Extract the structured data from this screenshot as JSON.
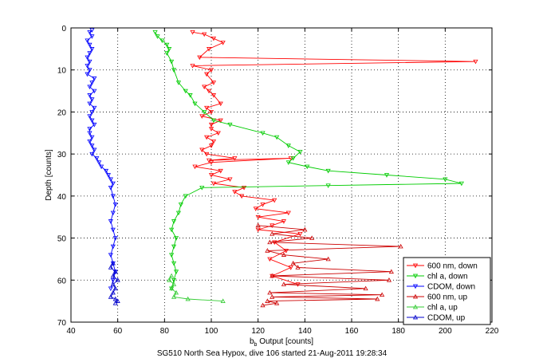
{
  "chart_data": {
    "type": "line",
    "title": "",
    "caption": "SG510 North Sea Hypox, dive 106 started 21-Aug-2011 19:28:34",
    "xlabel_main": "b",
    "xlabel_sub": "b",
    "xlabel_rest": " Output [counts]",
    "ylabel": "Depth [counts]",
    "xlim": [
      40,
      220
    ],
    "ylim": [
      0,
      70
    ],
    "y_reversed": true,
    "grid": true,
    "xticks": [
      40,
      60,
      80,
      100,
      120,
      140,
      160,
      180,
      200,
      220
    ],
    "yticks": [
      0,
      10,
      20,
      30,
      40,
      50,
      60,
      70
    ],
    "legend_position": "bottom-right",
    "series": [
      {
        "name": "600 nm, down",
        "color": "#ff0000",
        "marker": "tri-down",
        "x": [
          92,
          97,
          101,
          105,
          99,
          95,
          213,
          92,
          100,
          98,
          101,
          97,
          99,
          101,
          104,
          98,
          100,
          96,
          104,
          100,
          100,
          103,
          98,
          101,
          100,
          96,
          98,
          110,
          99,
          134,
          100,
          93,
          104,
          100,
          108,
          101,
          114,
          110,
          113,
          127,
          122,
          119,
          133,
          120,
          131,
          126,
          120,
          138,
          127,
          132,
          125,
          134,
          126,
          137
        ],
        "y": [
          1,
          1.5,
          2.5,
          3.5,
          5,
          7,
          8,
          9,
          10,
          11,
          13,
          14,
          15,
          16,
          18,
          19,
          20,
          21,
          22,
          23,
          24,
          25,
          26,
          27,
          28,
          29,
          30,
          31,
          31.5,
          31,
          32,
          33,
          34,
          35,
          36,
          37,
          38,
          39,
          40,
          41,
          42,
          43,
          44,
          45,
          46,
          47,
          48,
          49,
          51,
          53,
          55,
          57,
          59,
          61
        ]
      },
      {
        "name": "chl a, down",
        "color": "#00cc00",
        "marker": "tri-down",
        "x": [
          76,
          77,
          79,
          81,
          82,
          81,
          83,
          84,
          86,
          89,
          91,
          93,
          97,
          101,
          108,
          122,
          128,
          133,
          138,
          135,
          133,
          141,
          150,
          175,
          200,
          207,
          150,
          96,
          89,
          87,
          86,
          84,
          83,
          85,
          84,
          83,
          84,
          85,
          84,
          83
        ],
        "y": [
          1,
          2,
          3,
          4,
          5,
          6,
          8,
          10,
          13,
          15,
          16,
          18,
          20,
          22,
          23,
          25,
          26,
          28,
          29.5,
          31,
          32,
          33,
          34,
          35,
          36,
          37,
          37.5,
          38,
          40,
          42,
          44,
          46,
          48,
          50,
          52,
          54,
          56,
          58,
          60,
          62
        ]
      },
      {
        "name": "CDOM, down",
        "color": "#0000ff",
        "marker": "tri-down",
        "x": [
          49,
          48,
          49,
          47,
          48,
          49,
          48,
          47,
          48,
          47,
          48,
          47,
          50,
          49,
          48,
          50,
          48,
          49,
          48,
          50,
          49,
          48,
          49,
          50,
          48,
          48,
          49,
          48,
          49,
          50,
          49,
          51,
          52,
          53,
          55,
          56,
          57,
          58,
          57,
          58,
          59,
          58,
          57,
          58,
          59,
          58,
          57,
          58,
          59,
          58,
          57
        ],
        "y": [
          0.5,
          1,
          2,
          3,
          4,
          5,
          6,
          7,
          8,
          9,
          10,
          11,
          12,
          13,
          14,
          15,
          16,
          17,
          18,
          19,
          20,
          21,
          22,
          23,
          24,
          25,
          26,
          27,
          28,
          29,
          30,
          31,
          32,
          33,
          34,
          35,
          36,
          37,
          38,
          40,
          42,
          44,
          46,
          48,
          50,
          52,
          54,
          56,
          58,
          60,
          62
        ]
      },
      {
        "name": "600 nm, up",
        "color": "#cc0000",
        "marker": "tri-up",
        "x": [
          120,
          140,
          126,
          143,
          125,
          181,
          124,
          131,
          150,
          135,
          137,
          177,
          126,
          176,
          131,
          166,
          125,
          173,
          126,
          171,
          124,
          128,
          122
        ],
        "y": [
          47,
          48,
          49,
          50,
          51,
          52,
          53,
          54,
          55,
          56,
          57,
          58,
          59,
          60,
          61,
          62,
          63,
          63.5,
          64,
          64.5,
          65,
          65.5,
          66
        ]
      },
      {
        "name": "chl a, up",
        "color": "#33cc33",
        "marker": "tri-up",
        "x": [
          83,
          82,
          84,
          83,
          85,
          84,
          90,
          105
        ],
        "y": [
          59,
          60,
          61,
          62,
          63,
          64,
          64.5,
          65
        ]
      },
      {
        "name": "CDOM, up",
        "color": "#0000cc",
        "marker": "tri-up",
        "x": [
          58,
          57,
          59,
          58,
          60,
          58,
          59,
          58,
          57,
          59,
          60,
          59
        ],
        "y": [
          56,
          57,
          58,
          59,
          60,
          61,
          62,
          63,
          64,
          64.5,
          65,
          65.5
        ]
      }
    ]
  }
}
